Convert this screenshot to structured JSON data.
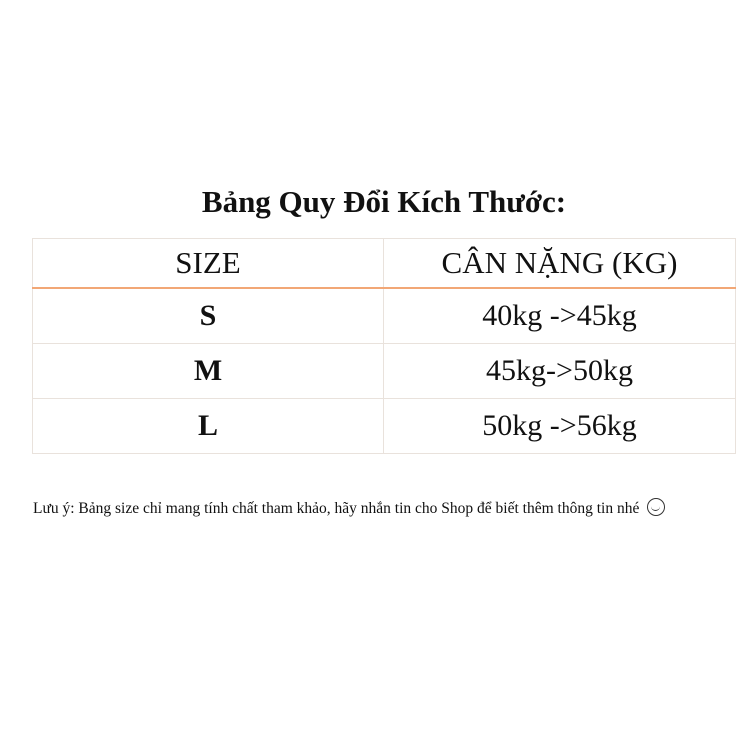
{
  "title": "Bảng Quy Đổi Kích Thước:",
  "table": {
    "headers": [
      "SIZE",
      "CÂN NẶNG (KG)"
    ],
    "rows": [
      {
        "size": "S",
        "weight": "40kg ->45kg"
      },
      {
        "size": "M",
        "weight": "45kg->50kg"
      },
      {
        "size": "L",
        "weight": "50kg ->56kg"
      }
    ]
  },
  "note": {
    "text": "Lưu ý: Bảng size chỉ mang tính chất tham khảo, hãy nhắn tin cho Shop để biết thêm thông tin nhé",
    "icon": "smiley-face-icon"
  },
  "colors": {
    "header_divider": "#f2a776",
    "border": "#e9e2dc"
  }
}
